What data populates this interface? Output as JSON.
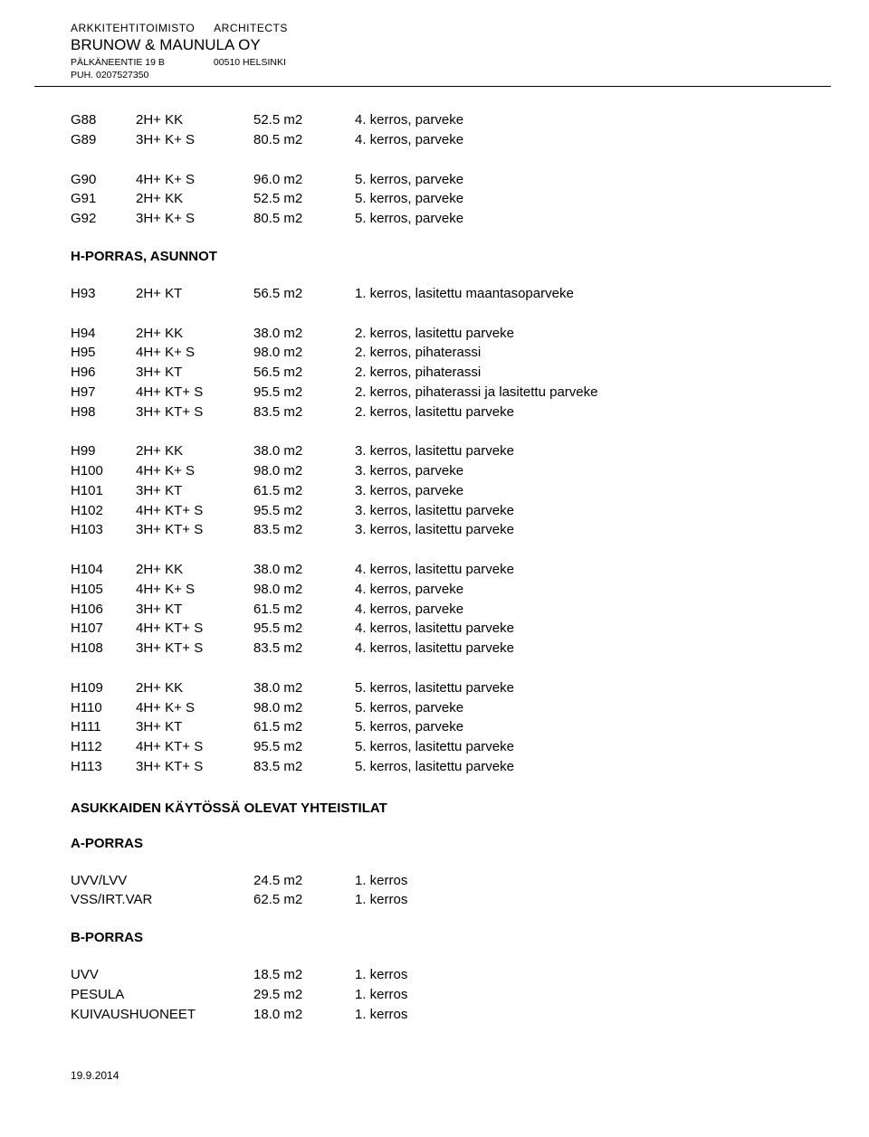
{
  "header": {
    "left1": "ARKKITEHTITOIMISTO",
    "right1": "ARCHITECTS",
    "company": "BRUNOW & MAUNULA OY",
    "addr_left": "PÄLKÄNEENTIE 19 B",
    "addr_right": "00510 HELSINKI",
    "phone": "PUH. 0207527350"
  },
  "blocks": [
    {
      "rows": [
        {
          "code": "G88",
          "type": "2H+ KK",
          "area": "52.5 m2",
          "note": "4. kerros, parveke"
        },
        {
          "code": "G89",
          "type": "3H+ K+ S",
          "area": "80.5 m2",
          "note": "4. kerros, parveke"
        }
      ]
    },
    {
      "rows": [
        {
          "code": "G90",
          "type": "4H+ K+ S",
          "area": "96.0 m2",
          "note": "5. kerros, parveke"
        },
        {
          "code": "G91",
          "type": "2H+ KK",
          "area": "52.5 m2",
          "note": "5. kerros, parveke"
        },
        {
          "code": "G92",
          "type": "3H+ K+ S",
          "area": "80.5 m2",
          "note": "5. kerros, parveke"
        }
      ]
    }
  ],
  "section_h": "H-PORRAS, ASUNNOT",
  "h_blocks": [
    {
      "rows": [
        {
          "code": "H93",
          "type": "2H+ KT",
          "area": "56.5 m2",
          "note": "1. kerros, lasitettu maantasoparveke"
        }
      ]
    },
    {
      "rows": [
        {
          "code": "H94",
          "type": "2H+ KK",
          "area": "38.0 m2",
          "note": "2. kerros, lasitettu parveke"
        },
        {
          "code": "H95",
          "type": "4H+ K+ S",
          "area": "98.0 m2",
          "note": "2. kerros, pihaterassi"
        },
        {
          "code": "H96",
          "type": "3H+ KT",
          "area": "56.5 m2",
          "note": "2. kerros, pihaterassi"
        },
        {
          "code": "H97",
          "type": "4H+ KT+ S",
          "area": "95.5 m2",
          "note": "2. kerros, pihaterassi ja lasitettu parveke"
        },
        {
          "code": "H98",
          "type": "3H+ KT+ S",
          "area": "83.5 m2",
          "note": "2. kerros, lasitettu parveke"
        }
      ]
    },
    {
      "rows": [
        {
          "code": "H99",
          "type": "2H+ KK",
          "area": "38.0 m2",
          "note": "3. kerros, lasitettu parveke"
        },
        {
          "code": "H100",
          "type": "4H+ K+ S",
          "area": "98.0 m2",
          "note": "3. kerros, parveke"
        },
        {
          "code": "H101",
          "type": "3H+ KT",
          "area": "61.5 m2",
          "note": "3. kerros, parveke"
        },
        {
          "code": "H102",
          "type": "4H+ KT+ S",
          "area": "95.5 m2",
          "note": "3. kerros, lasitettu parveke"
        },
        {
          "code": "H103",
          "type": "3H+ KT+ S",
          "area": "83.5 m2",
          "note": "3. kerros, lasitettu parveke"
        }
      ]
    },
    {
      "rows": [
        {
          "code": "H104",
          "type": "2H+ KK",
          "area": "38.0 m2",
          "note": "4. kerros, lasitettu parveke"
        },
        {
          "code": "H105",
          "type": "4H+ K+ S",
          "area": "98.0 m2",
          "note": "4. kerros, parveke"
        },
        {
          "code": "H106",
          "type": "3H+ KT",
          "area": "61.5 m2",
          "note": "4. kerros, parveke"
        },
        {
          "code": "H107",
          "type": "4H+ KT+ S",
          "area": "95.5 m2",
          "note": "4. kerros, lasitettu parveke"
        },
        {
          "code": "H108",
          "type": "3H+ KT+ S",
          "area": "83.5 m2",
          "note": "4. kerros, lasitettu parveke"
        }
      ]
    },
    {
      "rows": [
        {
          "code": "H109",
          "type": "2H+ KK",
          "area": "38.0 m2",
          "note": "5. kerros, lasitettu parveke"
        },
        {
          "code": "H110",
          "type": "4H+ K+ S",
          "area": "98.0 m2",
          "note": "5. kerros, parveke"
        },
        {
          "code": "H111",
          "type": "3H+ KT",
          "area": "61.5 m2",
          "note": "5. kerros, parveke"
        },
        {
          "code": "H112",
          "type": "4H+ KT+ S",
          "area": "95.5 m2",
          "note": "5. kerros, lasitettu parveke"
        },
        {
          "code": "H113",
          "type": "3H+ KT+ S",
          "area": "83.5 m2",
          "note": "5. kerros, lasitettu parveke"
        }
      ]
    }
  ],
  "shared_title": "ASUKKAIDEN KÄYTÖSSÄ OLEVAT YHTEISTILAT",
  "section_a": "A-PORRAS",
  "a_rows": [
    {
      "label": "UVV/LVV",
      "area": "24.5 m2",
      "note": "1. kerros"
    },
    {
      "label": "VSS/IRT.VAR",
      "area": "62.5 m2",
      "note": "1. kerros"
    }
  ],
  "section_b": "B-PORRAS",
  "b_rows": [
    {
      "label": "UVV",
      "area": "18.5 m2",
      "note": "1. kerros"
    },
    {
      "label": "PESULA",
      "area": "29.5 m2",
      "note": "1. kerros"
    },
    {
      "label": "KUIVAUSHUONEET",
      "area": "18.0 m2",
      "note": "1. kerros"
    }
  ],
  "footer_date": "19.9.2014"
}
